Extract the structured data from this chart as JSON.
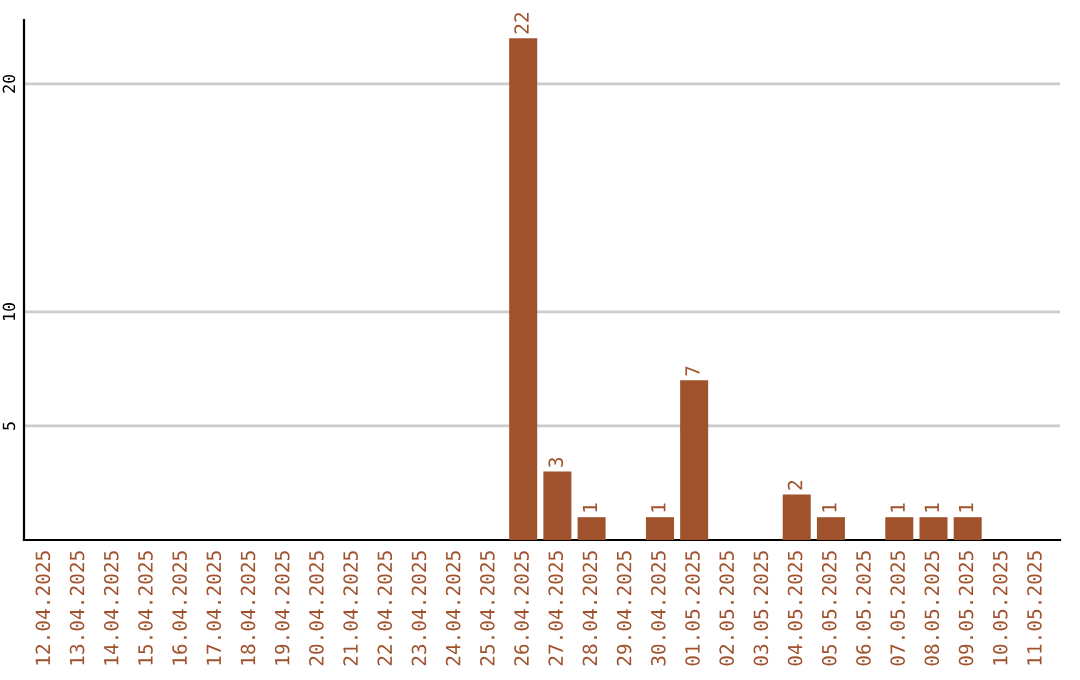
{
  "chart_data": {
    "type": "bar",
    "categories": [
      "12.04.2025",
      "13.04.2025",
      "14.04.2025",
      "15.04.2025",
      "16.04.2025",
      "17.04.2025",
      "18.04.2025",
      "19.04.2025",
      "20.04.2025",
      "21.04.2025",
      "22.04.2025",
      "23.04.2025",
      "24.04.2025",
      "25.04.2025",
      "26.04.2025",
      "27.04.2025",
      "28.04.2025",
      "29.04.2025",
      "30.04.2025",
      "01.05.2025",
      "02.05.2025",
      "03.05.2025",
      "04.05.2025",
      "05.05.2025",
      "06.05.2025",
      "07.05.2025",
      "08.05.2025",
      "09.05.2025",
      "10.05.2025",
      "11.05.2025"
    ],
    "values": [
      0,
      0,
      0,
      0,
      0,
      0,
      0,
      0,
      0,
      0,
      0,
      0,
      0,
      0,
      22,
      3,
      1,
      0,
      1,
      7,
      0,
      0,
      2,
      1,
      0,
      1,
      1,
      1,
      0,
      0
    ],
    "value_labels": [
      null,
      null,
      null,
      null,
      null,
      null,
      null,
      null,
      null,
      null,
      null,
      null,
      null,
      null,
      "22",
      "3",
      "1",
      null,
      "1",
      "7",
      null,
      null,
      "2",
      "1",
      null,
      "1",
      "1",
      "1",
      null,
      null
    ],
    "color": "#a0522d",
    "ylim": [
      0,
      22.8
    ],
    "yticks": [
      5,
      10,
      20
    ],
    "grid": "y"
  }
}
